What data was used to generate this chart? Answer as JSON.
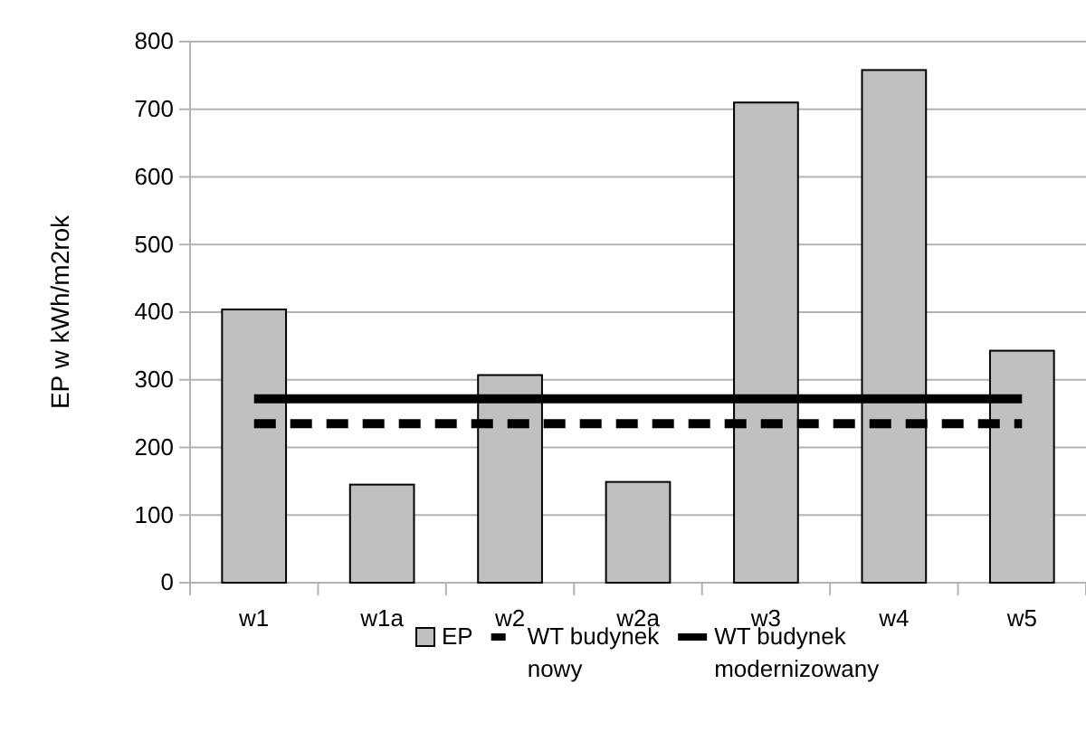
{
  "chart_data": {
    "type": "bar",
    "ylabel": "EP w kWh/m2rok",
    "categories": [
      "w1",
      "w1a",
      "w2",
      "w2a",
      "w3",
      "w4",
      "w5"
    ],
    "series": [
      {
        "name": "EP",
        "color": "#c0c0c0",
        "values": [
          404,
          145,
          307,
          149,
          710,
          758,
          343
        ]
      },
      {
        "name": "WT budynek nowy",
        "type": "line",
        "color": "#000000",
        "line_style": "dashed",
        "values": [
          235,
          235,
          235,
          235,
          235,
          235,
          235
        ]
      },
      {
        "name": "WT budynek modernizowany",
        "type": "line",
        "color": "#000000",
        "line_style": "solid",
        "values": [
          272,
          272,
          272,
          272,
          272,
          272,
          272
        ]
      }
    ],
    "ylim": [
      0,
      800
    ],
    "yticks": [
      0,
      100,
      200,
      300,
      400,
      500,
      600,
      700,
      800
    ],
    "grid": "y",
    "legend": "bottom"
  }
}
